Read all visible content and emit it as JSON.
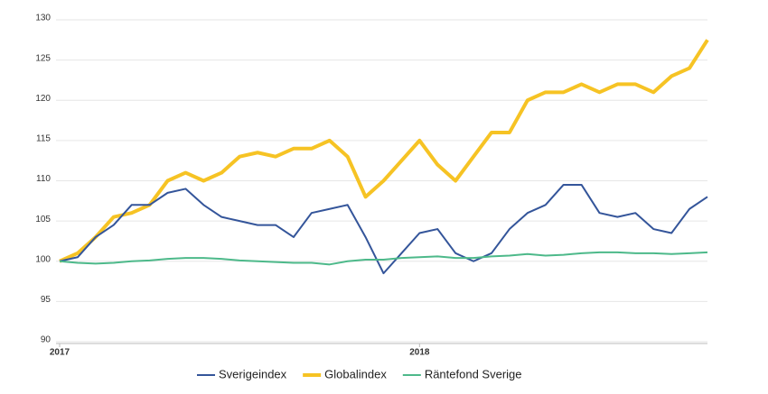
{
  "chart_data": {
    "type": "line",
    "x": [
      2017,
      2017.05,
      2017.1,
      2017.15,
      2017.2,
      2017.25,
      2017.3,
      2017.35,
      2017.4,
      2017.45,
      2017.5,
      2017.55,
      2017.6,
      2017.65,
      2017.7,
      2017.75,
      2017.8,
      2017.85,
      2017.9,
      2017.95,
      2018,
      2018.05,
      2018.1,
      2018.15,
      2018.2,
      2018.25,
      2018.3,
      2018.35,
      2018.4,
      2018.45,
      2018.5,
      2018.55,
      2018.6,
      2018.65,
      2018.7,
      2018.75,
      2018.8
    ],
    "series": [
      {
        "name": "Sverigeindex",
        "color": "#34559a",
        "width": 2,
        "values": [
          100,
          100.5,
          103,
          104.5,
          107,
          107,
          108.5,
          109,
          107,
          105.5,
          105,
          104.5,
          104.5,
          103,
          106,
          106.5,
          107,
          103,
          98.5,
          101,
          103.5,
          104,
          101,
          100,
          101,
          104,
          106,
          107,
          109.5,
          109.5,
          106,
          105.5,
          106,
          104,
          103.5,
          106.5,
          108
        ]
      },
      {
        "name": "Globalindex",
        "color": "#f6c324",
        "width": 4,
        "values": [
          100,
          101,
          103,
          105.5,
          106,
          107,
          110,
          111,
          110,
          111,
          113,
          113.5,
          113,
          114,
          114,
          115,
          113,
          108,
          110,
          112.5,
          115,
          112,
          110,
          113,
          116,
          116,
          120,
          121,
          121,
          122,
          121,
          122,
          122,
          121,
          123,
          124,
          127.5
        ]
      },
      {
        "name": "Räntefond Sverige",
        "color": "#4db98a",
        "width": 2,
        "values": [
          100,
          99.8,
          99.7,
          99.8,
          100,
          100.1,
          100.3,
          100.4,
          100.4,
          100.3,
          100.1,
          100,
          99.9,
          99.8,
          99.8,
          99.6,
          100,
          100.2,
          100.2,
          100.4,
          100.5,
          100.6,
          100.4,
          100.4,
          100.6,
          100.7,
          100.9,
          100.7,
          100.8,
          101,
          101.1,
          101.1,
          101,
          101,
          100.9,
          101,
          101.1
        ]
      }
    ],
    "xlim": [
      2017,
      2018.8
    ],
    "xticks": [
      2017,
      2018
    ],
    "ylim": [
      90,
      130
    ],
    "yticks": [
      90,
      95,
      100,
      105,
      110,
      115,
      120,
      125,
      130
    ],
    "grid": true,
    "legend": "bottom"
  }
}
